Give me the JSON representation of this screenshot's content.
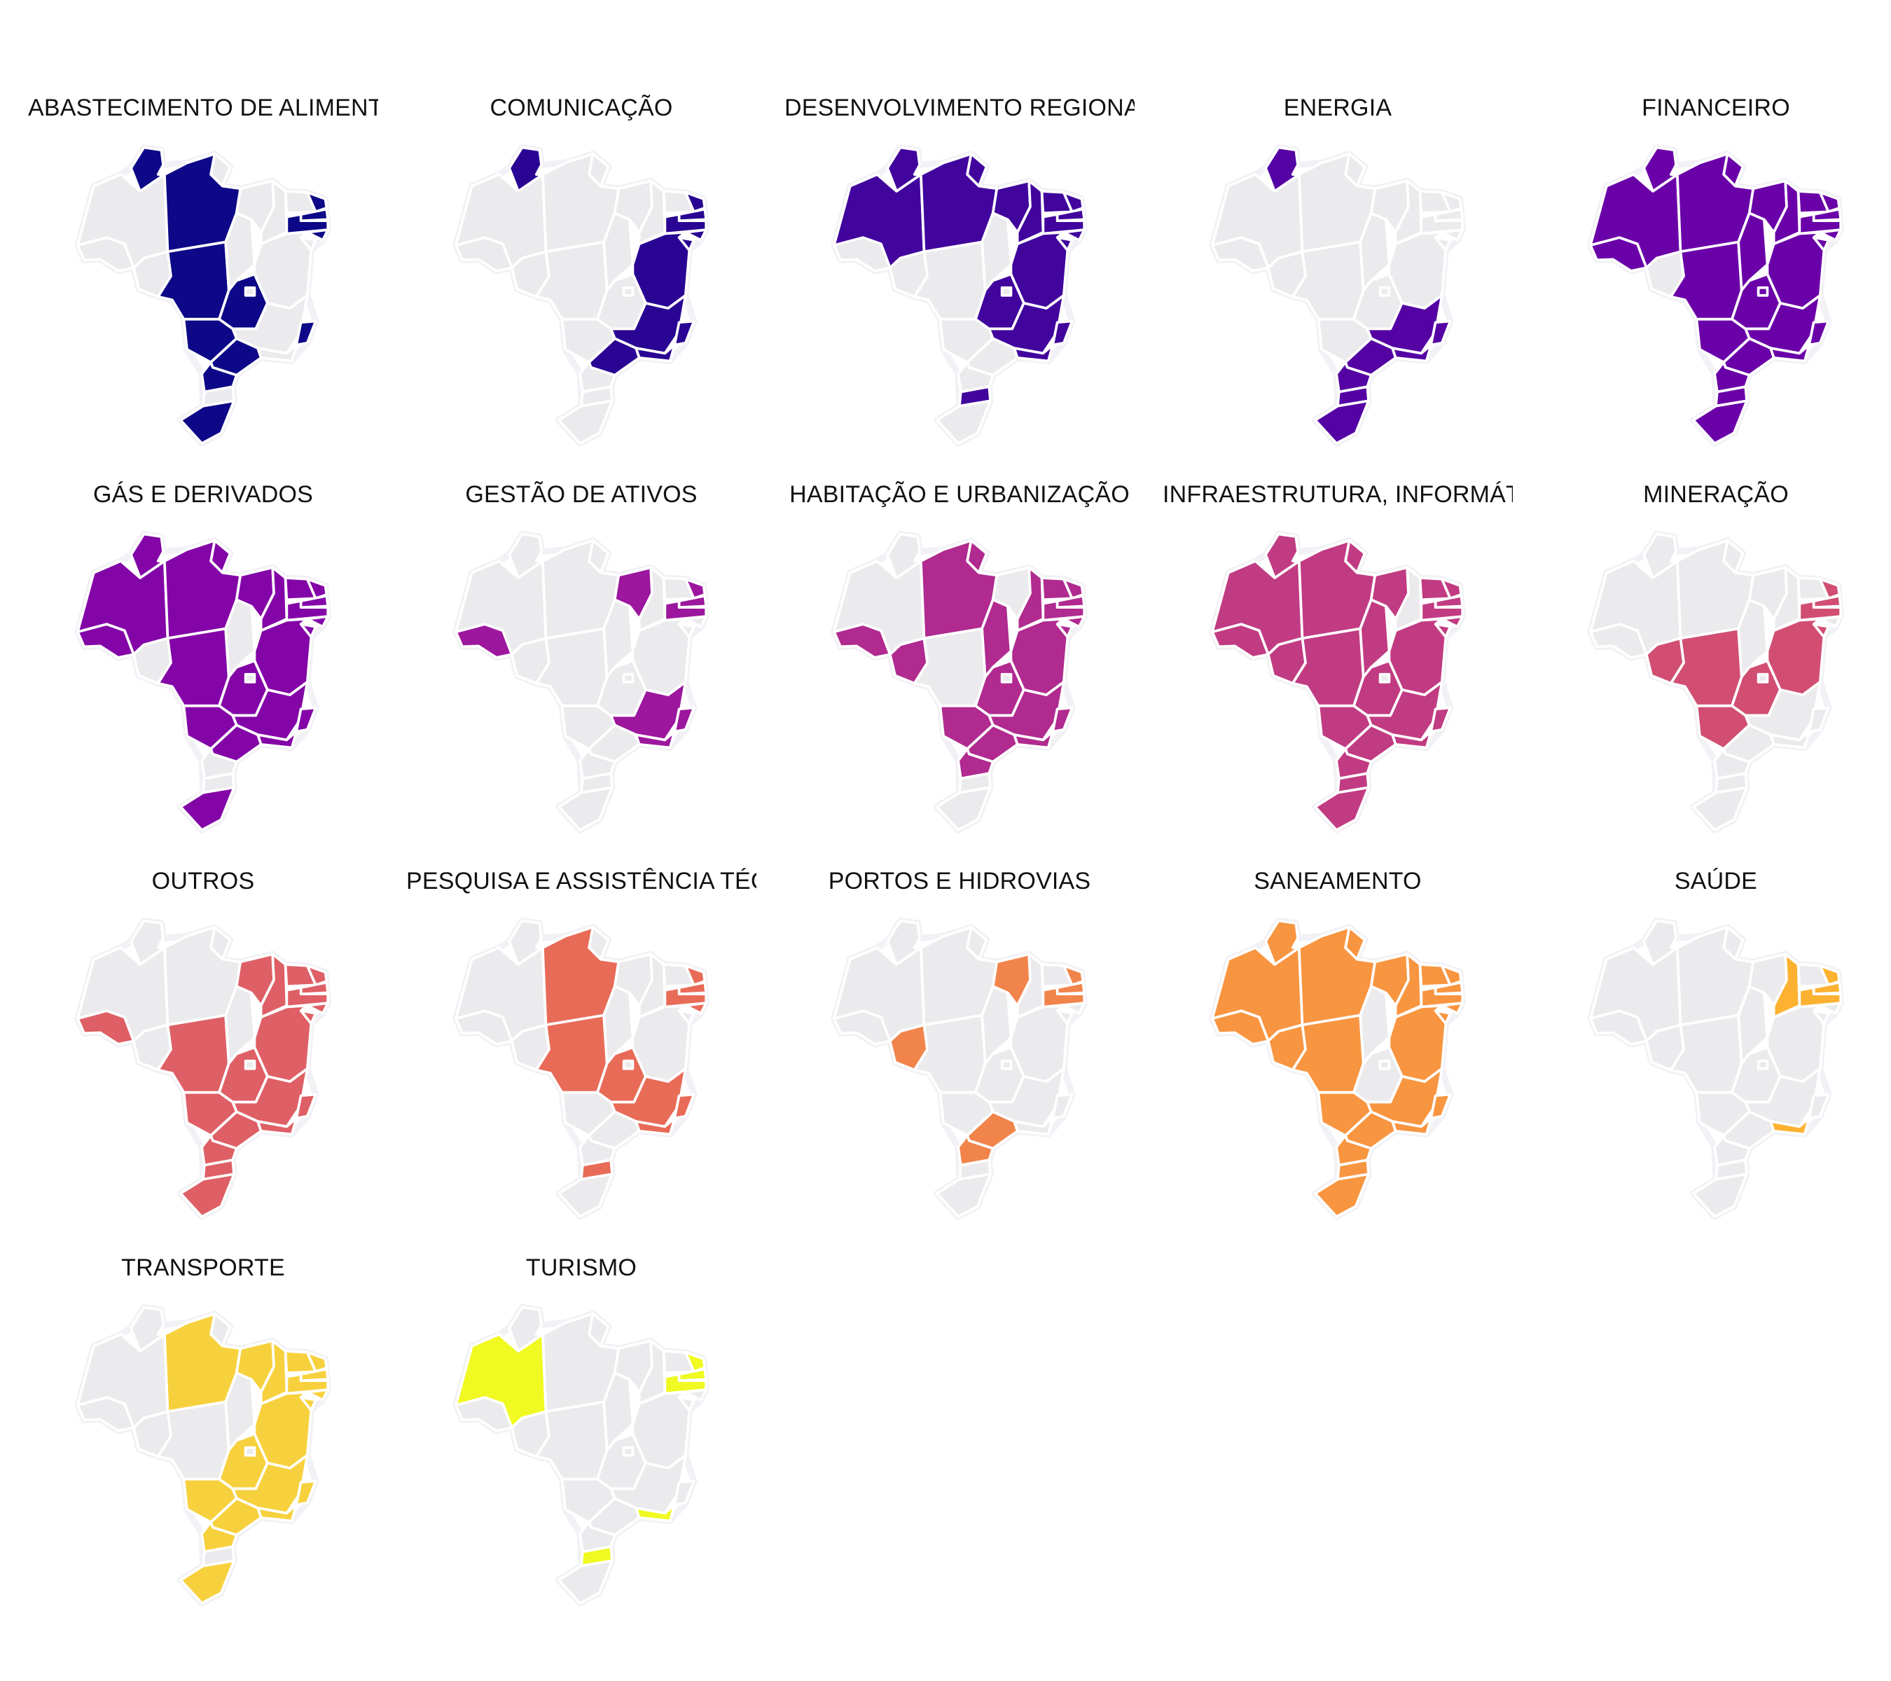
{
  "colors": {
    "inactive": "#ebebee",
    "border": "#ffffff"
  },
  "panels": [
    {
      "title": "ABASTECIMENTO DE ALIMENTOS E OUTROS",
      "color": "#0d0887",
      "states": [
        "RR",
        "PA",
        "MT",
        "GO",
        "MS",
        "SP",
        "PR",
        "RS",
        "PE",
        "PB",
        "RN",
        "AL",
        "ES"
      ]
    },
    {
      "title": "COMUNICAÇÃO",
      "color": "#2a0593",
      "states": [
        "RR",
        "MG",
        "ES",
        "RJ",
        "SP",
        "BA",
        "SE",
        "AL",
        "PE",
        "PB",
        "RN"
      ]
    },
    {
      "title": "DESENVOLVIMENTO REGIONAL",
      "color": "#41049d",
      "states": [
        "AM",
        "RR",
        "PA",
        "AP",
        "MA",
        "PI",
        "CE",
        "RN",
        "PB",
        "PE",
        "AL",
        "SE",
        "BA",
        "GO",
        "MG",
        "ES",
        "RJ",
        "SC"
      ]
    },
    {
      "title": "ENERGIA",
      "color": "#5502a4",
      "states": [
        "RR",
        "MG",
        "ES",
        "RJ",
        "SP",
        "PR",
        "SC",
        "RS"
      ]
    },
    {
      "title": "FINANCEIRO",
      "color": "#6a00a8",
      "states": [
        "AC",
        "AM",
        "RR",
        "PA",
        "AP",
        "MT",
        "TO",
        "MA",
        "PI",
        "CE",
        "RN",
        "PB",
        "PE",
        "AL",
        "SE",
        "BA",
        "GO",
        "DF",
        "MG",
        "ES",
        "RJ",
        "SP",
        "MS",
        "PR",
        "SC",
        "RS"
      ]
    },
    {
      "title": "GÁS E DERIVADOS",
      "color": "#8305a7",
      "states": [
        "AC",
        "AM",
        "RR",
        "PA",
        "AP",
        "MT",
        "MA",
        "PI",
        "CE",
        "RN",
        "PB",
        "PE",
        "AL",
        "SE",
        "BA",
        "GO",
        "MG",
        "ES",
        "RJ",
        "SP",
        "MS",
        "RS"
      ]
    },
    {
      "title": "GESTÃO DE ATIVOS",
      "color": "#9c179e",
      "states": [
        "AC",
        "MA",
        "PE",
        "PB",
        "RN",
        "MG",
        "ES",
        "RJ"
      ]
    },
    {
      "title": "HABITAÇÃO E URBANIZAÇÃO",
      "color": "#b02a8f",
      "states": [
        "AC",
        "RO",
        "PA",
        "AP",
        "TO",
        "PI",
        "CE",
        "RN",
        "PB",
        "PE",
        "AL",
        "SE",
        "BA",
        "GO",
        "MG",
        "ES",
        "RJ",
        "SP",
        "MS",
        "PR"
      ]
    },
    {
      "title": "INFRAESTRUTURA, INFORMÁTICA E TECNOLOGIA DA INFORMAÇÃO",
      "color": "#c13b82",
      "states": [
        "AC",
        "AM",
        "RR",
        "PA",
        "AP",
        "MT",
        "RO",
        "TO",
        "MA",
        "CE",
        "RN",
        "PB",
        "PE",
        "AL",
        "SE",
        "BA",
        "GO",
        "MG",
        "ES",
        "RJ",
        "SP",
        "MS",
        "PR",
        "SC",
        "RS"
      ]
    },
    {
      "title": "MINERAÇÃO",
      "color": "#d14e72",
      "states": [
        "RO",
        "MT",
        "GO",
        "MS",
        "BA",
        "SE",
        "PE",
        "PB",
        "RN"
      ]
    },
    {
      "title": "OUTROS",
      "color": "#de5f65",
      "states": [
        "AC",
        "MT",
        "MA",
        "PI",
        "CE",
        "RN",
        "PB",
        "PE",
        "AL",
        "SE",
        "BA",
        "GO",
        "MG",
        "ES",
        "RJ",
        "SP",
        "MS",
        "PR",
        "SC",
        "RS"
      ]
    },
    {
      "title": "PESQUISA E ASSISTÊNCIA TÉCNICA AGROPECUÁRIA",
      "color": "#e86b57",
      "states": [
        "PA",
        "MT",
        "GO",
        "MG",
        "ES",
        "RJ",
        "RN",
        "PB",
        "PE",
        "AL",
        "SC"
      ]
    },
    {
      "title": "PORTOS E HIDROVIAS",
      "color": "#f1844b",
      "states": [
        "RO",
        "MA",
        "PB",
        "PE",
        "RN",
        "SP",
        "PR"
      ]
    },
    {
      "title": "SANEAMENTO",
      "color": "#f89540",
      "states": [
        "AC",
        "AM",
        "RR",
        "PA",
        "AP",
        "MT",
        "RO",
        "MA",
        "PI",
        "CE",
        "RN",
        "PB",
        "PE",
        "AL",
        "SE",
        "BA",
        "MG",
        "ES",
        "RJ",
        "SP",
        "MS",
        "PR",
        "SC",
        "RS"
      ]
    },
    {
      "title": "SAÚDE",
      "color": "#fcb130",
      "states": [
        "PI",
        "PB",
        "PE",
        "RN",
        "RJ"
      ]
    },
    {
      "title": "TRANSPORTE",
      "color": "#f7d13d",
      "states": [
        "PA",
        "MA",
        "CE",
        "PI",
        "RN",
        "PB",
        "PE",
        "AL",
        "SE",
        "BA",
        "GO",
        "MG",
        "ES",
        "RJ",
        "SP",
        "MS",
        "PR",
        "RS"
      ]
    },
    {
      "title": "TURISMO",
      "color": "#f0f921",
      "states": [
        "AM",
        "PB",
        "PE",
        "RN",
        "RJ",
        "SC"
      ]
    }
  ]
}
